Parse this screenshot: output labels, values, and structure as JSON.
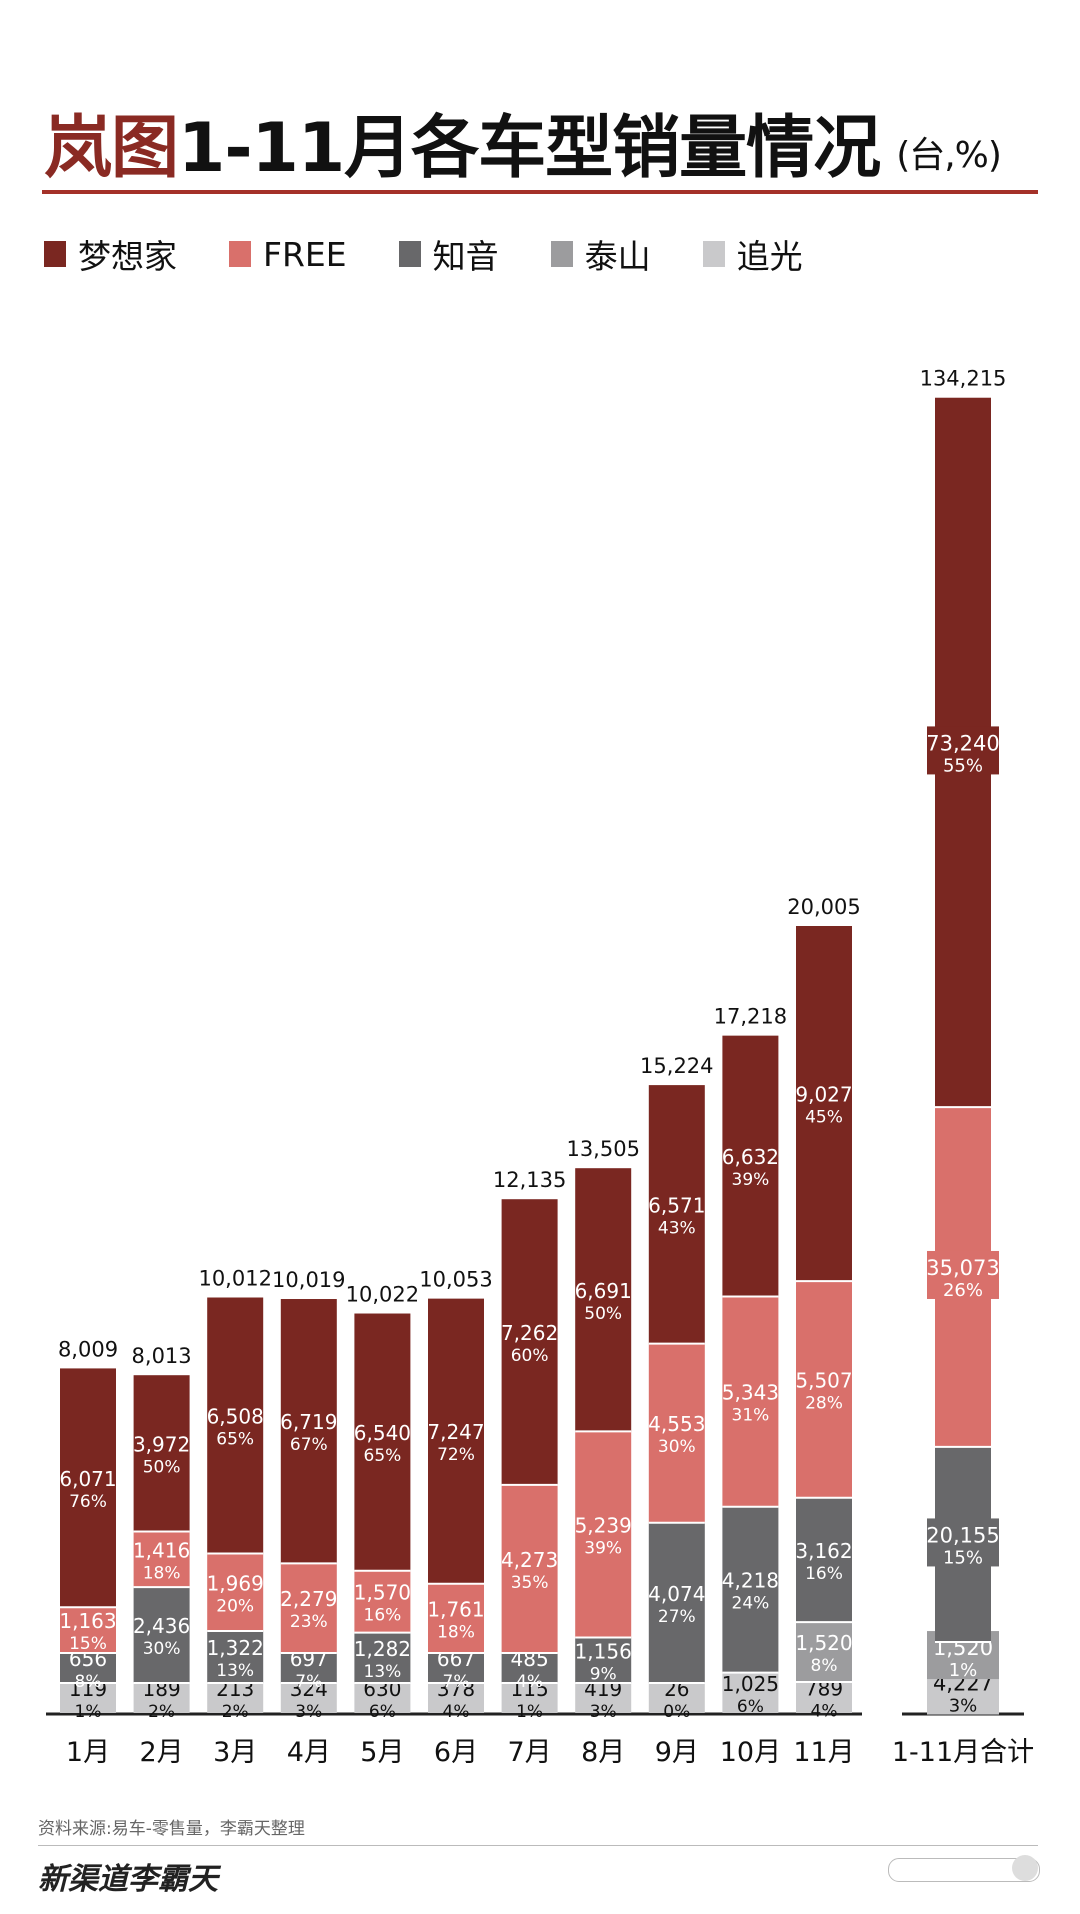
{
  "header": {
    "title_brand": "岚图",
    "title_main": "1-11月各车型销量情况",
    "title_unit": "(台,%)"
  },
  "legend": [
    {
      "name": "梦想家",
      "color": "#7a2721"
    },
    {
      "name": "FREE",
      "color": "#d9706b"
    },
    {
      "name": "知音",
      "color": "#68686a"
    },
    {
      "name": "泰山",
      "color": "#9c9c9e"
    },
    {
      "name": "追光",
      "color": "#c9c9cb"
    }
  ],
  "chart_data": {
    "type": "bar",
    "stacked": true,
    "categories": [
      "1月",
      "2月",
      "3月",
      "4月",
      "5月",
      "6月",
      "7月",
      "8月",
      "9月",
      "10月",
      "11月",
      "1-11月合计"
    ],
    "totals": [
      "8,009",
      "8,013",
      "10,012",
      "10,019",
      "10,022",
      "10,053",
      "12,135",
      "13,505",
      "15,224",
      "17,218",
      "20,005",
      "134,215"
    ],
    "series": [
      {
        "name": "梦想家",
        "color": "#7a2721",
        "values": [
          6071,
          3972,
          6508,
          6719,
          6540,
          7247,
          7262,
          6691,
          6571,
          6632,
          9027,
          73240
        ],
        "labels": [
          "6,071",
          "3,972",
          "6,508",
          "6,719",
          "6,540",
          "7,247",
          "7,262",
          "6,691",
          "6,571",
          "6,632",
          "9,027",
          "73,240"
        ],
        "pct": [
          "76%",
          "50%",
          "65%",
          "67%",
          "65%",
          "72%",
          "60%",
          "50%",
          "43%",
          "39%",
          "45%",
          "55%"
        ]
      },
      {
        "name": "FREE",
        "color": "#d9706b",
        "values": [
          1163,
          1416,
          1969,
          2279,
          1570,
          1761,
          4273,
          5239,
          4553,
          5343,
          5507,
          35073
        ],
        "labels": [
          "1,163",
          "1,416",
          "1,969",
          "2,279",
          "1,570",
          "1,761",
          "4,273",
          "5,239",
          "4,553",
          "5,343",
          "5,507",
          "35,073"
        ],
        "pct": [
          "15%",
          "18%",
          "20%",
          "23%",
          "16%",
          "18%",
          "35%",
          "39%",
          "30%",
          "31%",
          "28%",
          "26%"
        ]
      },
      {
        "name": "知音",
        "color": "#68686a",
        "values": [
          656,
          2436,
          1322,
          697,
          1282,
          667,
          485,
          1156,
          4074,
          4218,
          3162,
          20155
        ],
        "labels": [
          "656",
          "2,436",
          "1,322",
          "697",
          "1,282",
          "667",
          "485",
          "1,156",
          "4,074",
          "4,218",
          "3,162",
          "20,155"
        ],
        "pct": [
          "8%",
          "30%",
          "13%",
          "7%",
          "13%",
          "7%",
          "4%",
          "9%",
          "27%",
          "24%",
          "16%",
          "15%"
        ]
      },
      {
        "name": "泰山",
        "color": "#9c9c9e",
        "values": [
          0,
          0,
          0,
          0,
          0,
          0,
          0,
          0,
          0,
          0,
          1520,
          1520
        ],
        "labels": [
          "",
          "",
          "",
          "",
          "",
          "",
          "",
          "",
          "",
          "",
          "1,520",
          "1,520"
        ],
        "pct": [
          "",
          "",
          "",
          "",
          "",
          "",
          "",
          "",
          "",
          "",
          "8%",
          "1%"
        ]
      },
      {
        "name": "追光",
        "color": "#c9c9cb",
        "values": [
          119,
          189,
          213,
          324,
          630,
          378,
          115,
          419,
          26,
          1025,
          789,
          4227
        ],
        "labels": [
          "119",
          "189",
          "213",
          "324",
          "630",
          "378",
          "115",
          "419",
          "26",
          "1,025",
          "789",
          "4,227"
        ],
        "pct": [
          "1%",
          "2%",
          "2%",
          "3%",
          "6%",
          "4%",
          "1%",
          "3%",
          "0%",
          "6%",
          "4%",
          "3%"
        ]
      }
    ]
  },
  "footer": {
    "source": "资料来源:易车-零售量，李霸天整理",
    "brand": "新渠道李霸天"
  }
}
